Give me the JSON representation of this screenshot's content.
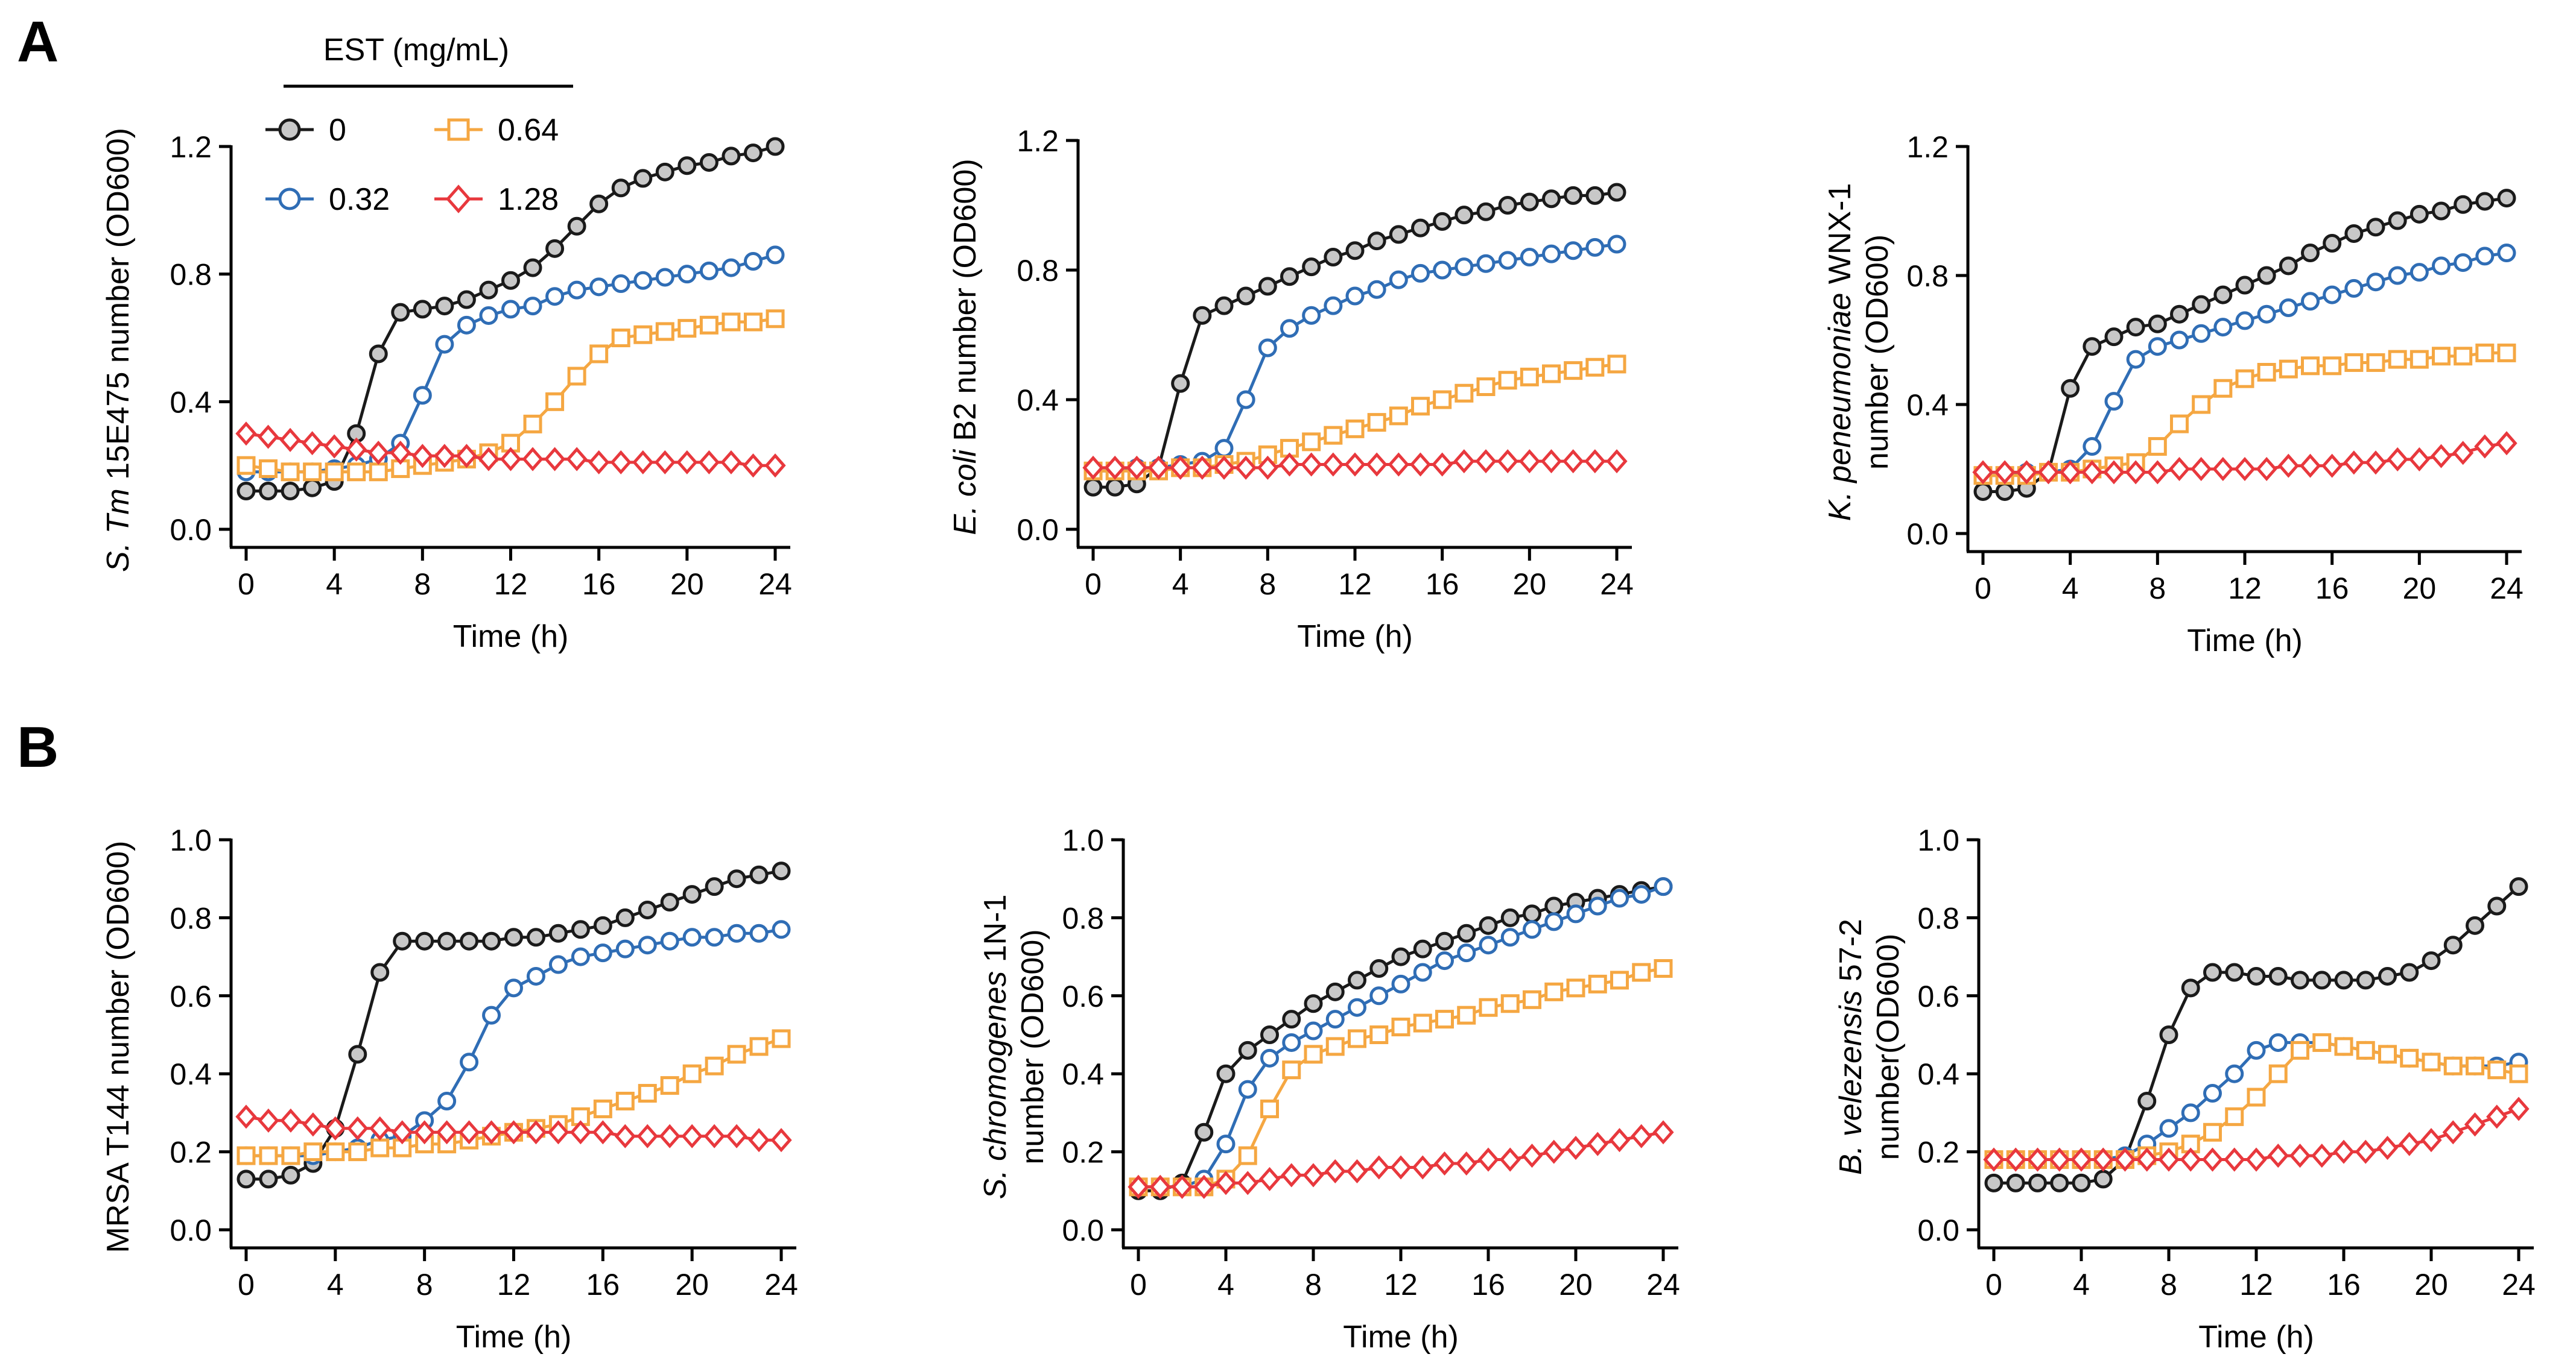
{
  "panel_labels": [
    "A",
    "B"
  ],
  "legend": {
    "title": "EST (mg/mL)",
    "entries": [
      {
        "label": "0",
        "color": "#1a1a1a",
        "fill": "#c8c8c8",
        "marker": "circle"
      },
      {
        "label": "0.32",
        "color": "#2f6db5",
        "fill": "#ffffff",
        "marker": "circle"
      },
      {
        "label": "0.64",
        "color": "#f5a742",
        "fill": "#ffffff",
        "marker": "square"
      },
      {
        "label": "1.28",
        "color": "#e8383d",
        "fill": "#ffffff",
        "marker": "diamond"
      }
    ]
  },
  "chart_data": [
    {
      "type": "line",
      "panel": "A",
      "title": "",
      "ylabel": [
        {
          "text": "S. Tm",
          "italic": true
        },
        {
          "text": " 15E475 number (OD600)",
          "italic": false
        }
      ],
      "xlabel": "Time (h)",
      "xlim": [
        0,
        24
      ],
      "ylim": [
        0,
        1.2
      ],
      "xticks": [
        0,
        4,
        8,
        12,
        16,
        20,
        24
      ],
      "yticks": [
        0.0,
        0.4,
        0.8,
        1.2
      ],
      "ytick_labels": [
        "0.0",
        "0.4",
        "0.8",
        "1.2"
      ],
      "x": [
        0,
        1,
        2,
        3,
        4,
        5,
        6,
        7,
        8,
        9,
        10,
        11,
        12,
        13,
        14,
        15,
        16,
        17,
        18,
        19,
        20,
        21,
        22,
        23,
        24
      ],
      "series": [
        {
          "name": "0",
          "values": [
            0.12,
            0.12,
            0.12,
            0.13,
            0.15,
            0.3,
            0.55,
            0.68,
            0.69,
            0.7,
            0.72,
            0.75,
            0.78,
            0.82,
            0.88,
            0.95,
            1.02,
            1.07,
            1.1,
            1.12,
            1.14,
            1.15,
            1.17,
            1.18,
            1.2
          ]
        },
        {
          "name": "0.32",
          "values": [
            0.18,
            0.18,
            0.18,
            0.18,
            0.19,
            0.2,
            0.22,
            0.27,
            0.42,
            0.58,
            0.64,
            0.67,
            0.69,
            0.7,
            0.73,
            0.75,
            0.76,
            0.77,
            0.78,
            0.79,
            0.8,
            0.81,
            0.82,
            0.84,
            0.86
          ]
        },
        {
          "name": "0.64",
          "values": [
            0.2,
            0.19,
            0.18,
            0.18,
            0.18,
            0.18,
            0.18,
            0.19,
            0.2,
            0.21,
            0.22,
            0.24,
            0.27,
            0.33,
            0.4,
            0.48,
            0.55,
            0.6,
            0.61,
            0.62,
            0.63,
            0.64,
            0.65,
            0.65,
            0.66
          ]
        },
        {
          "name": "1.28",
          "values": [
            0.3,
            0.29,
            0.28,
            0.27,
            0.26,
            0.25,
            0.24,
            0.24,
            0.23,
            0.23,
            0.23,
            0.22,
            0.22,
            0.22,
            0.22,
            0.22,
            0.21,
            0.21,
            0.21,
            0.21,
            0.21,
            0.21,
            0.21,
            0.2,
            0.2
          ]
        }
      ]
    },
    {
      "type": "line",
      "panel": "A",
      "title": "",
      "ylabel": [
        {
          "text": "E. coli",
          "italic": true
        },
        {
          "text": " B2 number (OD600)",
          "italic": false
        }
      ],
      "xlabel": "Time (h)",
      "xlim": [
        0,
        24
      ],
      "ylim": [
        0,
        1.2
      ],
      "xticks": [
        0,
        4,
        8,
        12,
        16,
        20,
        24
      ],
      "yticks": [
        0.0,
        0.4,
        0.8,
        1.2
      ],
      "ytick_labels": [
        "0.0",
        "0.4",
        "0.8",
        "1.2"
      ],
      "x": [
        0,
        1,
        2,
        3,
        4,
        5,
        6,
        7,
        8,
        9,
        10,
        11,
        12,
        13,
        14,
        15,
        16,
        17,
        18,
        19,
        20,
        21,
        22,
        23,
        24
      ],
      "series": [
        {
          "name": "0",
          "values": [
            0.13,
            0.13,
            0.14,
            0.19,
            0.45,
            0.66,
            0.69,
            0.72,
            0.75,
            0.78,
            0.81,
            0.84,
            0.86,
            0.89,
            0.91,
            0.93,
            0.95,
            0.97,
            0.98,
            1.0,
            1.01,
            1.02,
            1.03,
            1.03,
            1.04
          ]
        },
        {
          "name": "0.32",
          "values": [
            0.18,
            0.18,
            0.19,
            0.19,
            0.2,
            0.21,
            0.25,
            0.4,
            0.56,
            0.62,
            0.66,
            0.69,
            0.72,
            0.74,
            0.77,
            0.79,
            0.8,
            0.81,
            0.82,
            0.83,
            0.84,
            0.85,
            0.86,
            0.87,
            0.88
          ]
        },
        {
          "name": "0.64",
          "values": [
            0.18,
            0.18,
            0.18,
            0.18,
            0.19,
            0.19,
            0.2,
            0.21,
            0.23,
            0.25,
            0.27,
            0.29,
            0.31,
            0.33,
            0.35,
            0.38,
            0.4,
            0.42,
            0.44,
            0.46,
            0.47,
            0.48,
            0.49,
            0.5,
            0.51
          ]
        },
        {
          "name": "1.28",
          "values": [
            0.19,
            0.19,
            0.19,
            0.19,
            0.19,
            0.19,
            0.19,
            0.19,
            0.19,
            0.2,
            0.2,
            0.2,
            0.2,
            0.2,
            0.2,
            0.2,
            0.2,
            0.21,
            0.21,
            0.21,
            0.21,
            0.21,
            0.21,
            0.21,
            0.21
          ]
        }
      ]
    },
    {
      "type": "line",
      "panel": "A",
      "title": "",
      "ylabel": [
        {
          "text": "K. peneumoniae",
          "italic": true
        },
        {
          "text": " WNX-1",
          "italic": false
        }
      ],
      "ylabel2": "number (OD600)",
      "xlabel": "Time (h)",
      "xlim": [
        0,
        24
      ],
      "ylim": [
        0,
        1.2
      ],
      "xticks": [
        0,
        4,
        8,
        12,
        16,
        20,
        24
      ],
      "yticks": [
        0.0,
        0.4,
        0.8,
        1.2
      ],
      "ytick_labels": [
        "0.0",
        "0.4",
        "0.8",
        "1.2"
      ],
      "x": [
        0,
        1,
        2,
        3,
        4,
        5,
        6,
        7,
        8,
        9,
        10,
        11,
        12,
        13,
        14,
        15,
        16,
        17,
        18,
        19,
        20,
        21,
        22,
        23,
        24
      ],
      "series": [
        {
          "name": "0",
          "values": [
            0.13,
            0.13,
            0.14,
            0.19,
            0.45,
            0.58,
            0.61,
            0.64,
            0.65,
            0.68,
            0.71,
            0.74,
            0.77,
            0.8,
            0.83,
            0.87,
            0.9,
            0.93,
            0.95,
            0.97,
            0.99,
            1.0,
            1.02,
            1.03,
            1.04
          ]
        },
        {
          "name": "0.32",
          "values": [
            0.18,
            0.18,
            0.19,
            0.19,
            0.2,
            0.27,
            0.41,
            0.54,
            0.58,
            0.6,
            0.62,
            0.64,
            0.66,
            0.68,
            0.7,
            0.72,
            0.74,
            0.76,
            0.78,
            0.8,
            0.81,
            0.83,
            0.84,
            0.86,
            0.87
          ]
        },
        {
          "name": "0.64",
          "values": [
            0.18,
            0.18,
            0.18,
            0.19,
            0.19,
            0.2,
            0.21,
            0.22,
            0.27,
            0.34,
            0.4,
            0.45,
            0.48,
            0.5,
            0.51,
            0.52,
            0.52,
            0.53,
            0.53,
            0.54,
            0.54,
            0.55,
            0.55,
            0.56,
            0.56
          ]
        },
        {
          "name": "1.28",
          "values": [
            0.19,
            0.19,
            0.19,
            0.19,
            0.19,
            0.19,
            0.19,
            0.19,
            0.19,
            0.2,
            0.2,
            0.2,
            0.2,
            0.2,
            0.21,
            0.21,
            0.21,
            0.22,
            0.22,
            0.23,
            0.23,
            0.24,
            0.25,
            0.27,
            0.28
          ]
        }
      ]
    },
    {
      "type": "line",
      "panel": "B",
      "title": "",
      "ylabel": [
        {
          "text": "MRSA T144 number (OD600)",
          "italic": false
        }
      ],
      "xlabel": "Time (h)",
      "xlim": [
        0,
        24
      ],
      "ylim": [
        0,
        1.0
      ],
      "xticks": [
        0,
        4,
        8,
        12,
        16,
        20,
        24
      ],
      "yticks": [
        0.0,
        0.2,
        0.4,
        0.6,
        0.8,
        1.0
      ],
      "ytick_labels": [
        "0.0",
        "0.2",
        "0.4",
        "0.6",
        "0.8",
        "1.0"
      ],
      "x": [
        0,
        1,
        2,
        3,
        4,
        5,
        6,
        7,
        8,
        9,
        10,
        11,
        12,
        13,
        14,
        15,
        16,
        17,
        18,
        19,
        20,
        21,
        22,
        23,
        24
      ],
      "series": [
        {
          "name": "0",
          "values": [
            0.13,
            0.13,
            0.14,
            0.17,
            0.26,
            0.45,
            0.66,
            0.74,
            0.74,
            0.74,
            0.74,
            0.74,
            0.75,
            0.75,
            0.76,
            0.77,
            0.78,
            0.8,
            0.82,
            0.84,
            0.86,
            0.88,
            0.9,
            0.91,
            0.92
          ]
        },
        {
          "name": "0.32",
          "values": [
            0.19,
            0.19,
            0.19,
            0.19,
            0.2,
            0.21,
            0.23,
            0.24,
            0.28,
            0.33,
            0.43,
            0.55,
            0.62,
            0.65,
            0.68,
            0.7,
            0.71,
            0.72,
            0.73,
            0.74,
            0.75,
            0.75,
            0.76,
            0.76,
            0.77
          ]
        },
        {
          "name": "0.64",
          "values": [
            0.19,
            0.19,
            0.19,
            0.2,
            0.2,
            0.2,
            0.21,
            0.21,
            0.22,
            0.22,
            0.23,
            0.24,
            0.25,
            0.26,
            0.27,
            0.29,
            0.31,
            0.33,
            0.35,
            0.37,
            0.4,
            0.42,
            0.45,
            0.47,
            0.49
          ]
        },
        {
          "name": "1.28",
          "values": [
            0.29,
            0.28,
            0.28,
            0.27,
            0.26,
            0.26,
            0.26,
            0.25,
            0.25,
            0.25,
            0.25,
            0.25,
            0.25,
            0.25,
            0.25,
            0.25,
            0.25,
            0.24,
            0.24,
            0.24,
            0.24,
            0.24,
            0.24,
            0.23,
            0.23
          ]
        }
      ]
    },
    {
      "type": "line",
      "panel": "B",
      "title": "",
      "ylabel": [
        {
          "text": "S. chromogenes",
          "italic": true
        },
        {
          "text": " 1N-1",
          "italic": false
        }
      ],
      "ylabel2": "number (OD600)",
      "xlabel": "Time (h)",
      "xlim": [
        0,
        24
      ],
      "ylim": [
        0,
        1.0
      ],
      "xticks": [
        0,
        4,
        8,
        12,
        16,
        20,
        24
      ],
      "yticks": [
        0.0,
        0.2,
        0.4,
        0.6,
        0.8,
        1.0
      ],
      "ytick_labels": [
        "0.0",
        "0.2",
        "0.4",
        "0.6",
        "0.8",
        "1.0"
      ],
      "x": [
        0,
        1,
        2,
        3,
        4,
        5,
        6,
        7,
        8,
        9,
        10,
        11,
        12,
        13,
        14,
        15,
        16,
        17,
        18,
        19,
        20,
        21,
        22,
        23,
        24
      ],
      "series": [
        {
          "name": "0",
          "values": [
            0.1,
            0.1,
            0.12,
            0.25,
            0.4,
            0.46,
            0.5,
            0.54,
            0.58,
            0.61,
            0.64,
            0.67,
            0.7,
            0.72,
            0.74,
            0.76,
            0.78,
            0.8,
            0.81,
            0.83,
            0.84,
            0.85,
            0.86,
            0.87,
            0.88
          ]
        },
        {
          "name": "0.32",
          "values": [
            0.11,
            0.11,
            0.11,
            0.13,
            0.22,
            0.36,
            0.44,
            0.48,
            0.51,
            0.54,
            0.57,
            0.6,
            0.63,
            0.66,
            0.69,
            0.71,
            0.73,
            0.75,
            0.77,
            0.79,
            0.81,
            0.83,
            0.85,
            0.86,
            0.88
          ]
        },
        {
          "name": "0.64",
          "values": [
            0.11,
            0.11,
            0.11,
            0.11,
            0.13,
            0.19,
            0.31,
            0.41,
            0.45,
            0.47,
            0.49,
            0.5,
            0.52,
            0.53,
            0.54,
            0.55,
            0.57,
            0.58,
            0.59,
            0.61,
            0.62,
            0.63,
            0.64,
            0.66,
            0.67
          ]
        },
        {
          "name": "1.28",
          "values": [
            0.11,
            0.11,
            0.11,
            0.11,
            0.12,
            0.12,
            0.13,
            0.14,
            0.14,
            0.15,
            0.15,
            0.16,
            0.16,
            0.16,
            0.17,
            0.17,
            0.18,
            0.18,
            0.19,
            0.2,
            0.21,
            0.22,
            0.23,
            0.24,
            0.25
          ]
        }
      ]
    },
    {
      "type": "line",
      "panel": "B",
      "title": "",
      "ylabel": [
        {
          "text": "B. velezensis",
          "italic": true
        },
        {
          "text": " 57-2",
          "italic": false
        }
      ],
      "ylabel2": "number(OD600)",
      "xlabel": "Time (h)",
      "xlim": [
        0,
        24
      ],
      "ylim": [
        0,
        1.0
      ],
      "xticks": [
        0,
        4,
        8,
        12,
        16,
        20,
        24
      ],
      "yticks": [
        0.0,
        0.2,
        0.4,
        0.6,
        0.8,
        1.0
      ],
      "ytick_labels": [
        "0.0",
        "0.2",
        "0.4",
        "0.6",
        "0.8",
        "1.0"
      ],
      "x": [
        0,
        1,
        2,
        3,
        4,
        5,
        6,
        7,
        8,
        9,
        10,
        11,
        12,
        13,
        14,
        15,
        16,
        17,
        18,
        19,
        20,
        21,
        22,
        23,
        24
      ],
      "series": [
        {
          "name": "0",
          "values": [
            0.12,
            0.12,
            0.12,
            0.12,
            0.12,
            0.13,
            0.18,
            0.33,
            0.5,
            0.62,
            0.66,
            0.66,
            0.65,
            0.65,
            0.64,
            0.64,
            0.64,
            0.64,
            0.65,
            0.66,
            0.69,
            0.73,
            0.78,
            0.83,
            0.88
          ]
        },
        {
          "name": "0.32",
          "values": [
            0.18,
            0.18,
            0.18,
            0.18,
            0.18,
            0.18,
            0.19,
            0.22,
            0.26,
            0.3,
            0.35,
            0.4,
            0.46,
            0.48,
            0.48,
            0.48,
            0.47,
            0.46,
            0.45,
            0.44,
            0.43,
            0.42,
            0.42,
            0.42,
            0.43
          ]
        },
        {
          "name": "0.64",
          "values": [
            0.18,
            0.18,
            0.18,
            0.18,
            0.18,
            0.18,
            0.18,
            0.19,
            0.2,
            0.22,
            0.25,
            0.29,
            0.34,
            0.4,
            0.46,
            0.48,
            0.47,
            0.46,
            0.45,
            0.44,
            0.43,
            0.42,
            0.42,
            0.41,
            0.4
          ]
        },
        {
          "name": "1.28",
          "values": [
            0.18,
            0.18,
            0.18,
            0.18,
            0.18,
            0.18,
            0.18,
            0.18,
            0.18,
            0.18,
            0.18,
            0.18,
            0.18,
            0.19,
            0.19,
            0.19,
            0.2,
            0.2,
            0.21,
            0.22,
            0.23,
            0.25,
            0.27,
            0.29,
            0.31
          ]
        }
      ]
    }
  ]
}
